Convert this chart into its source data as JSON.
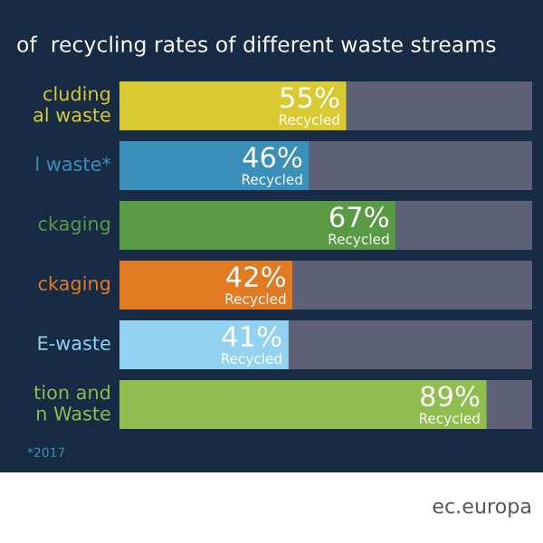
{
  "chart_data": {
    "type": "bar",
    "orientation": "horizontal",
    "stacked": true,
    "title": "of  recycling rates of different waste streams",
    "categories": [
      "cluding\nal waste",
      "l waste*",
      "ckaging",
      "ckaging",
      "E-waste",
      "tion and\nn Waste"
    ],
    "series": [
      {
        "colors": [
          "#d9c932",
          "#3a90b8",
          "#5a9a45",
          "#e07b24",
          "#92d2f0",
          "#8fbd4f"
        ],
        "values": [
          55,
          46,
          67,
          42,
          41,
          89
        ],
        "value_labels": [
          "55%\nRecycled",
          "46%\nRecycled",
          "67%\nRecycled",
          "42%\nRecycled",
          "41%\nRecycled",
          "89%\nRecycled"
        ]
      },
      {
        "color": "#5f6178",
        "values": [
          45,
          54,
          33,
          58,
          59,
          11
        ]
      }
    ],
    "xlim": [
      0,
      100
    ],
    "tick_labels": false,
    "annotations": [
      "*2017",
      "ec.europa"
    ]
  }
}
